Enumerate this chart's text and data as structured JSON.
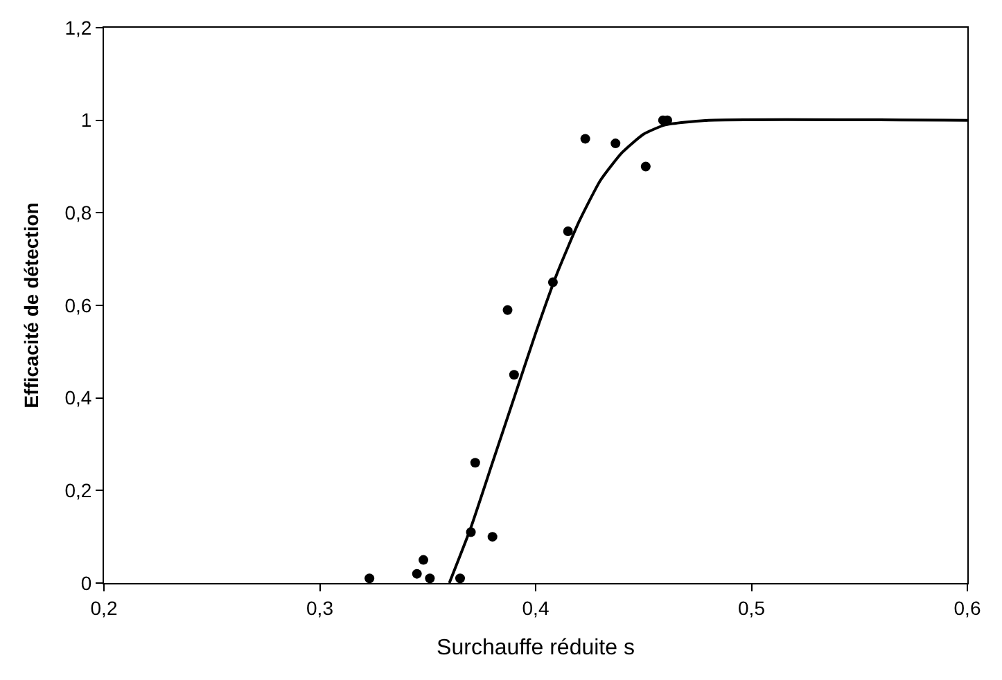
{
  "chart_data": {
    "type": "scatter",
    "xlabel": "Surchauffe réduite s",
    "ylabel": "Efficacité de détection",
    "xlim": [
      0.2,
      0.6
    ],
    "ylim": [
      0,
      1.2
    ],
    "xticks": [
      {
        "value": 0.2,
        "label": "0,2"
      },
      {
        "value": 0.3,
        "label": "0,3"
      },
      {
        "value": 0.4,
        "label": "0,4"
      },
      {
        "value": 0.5,
        "label": "0,5"
      },
      {
        "value": 0.6,
        "label": "0,6"
      }
    ],
    "yticks": [
      0,
      {
        "value": 0.2,
        "label": "0,2"
      },
      {
        "value": 0.4,
        "label": "0,4"
      },
      {
        "value": 0.6,
        "label": "0,6"
      },
      {
        "value": 0.8,
        "label": "0,8"
      },
      1,
      {
        "value": 1.2,
        "label": "1,2"
      }
    ],
    "marker": "circle",
    "series": [
      {
        "color": "#000000",
        "x": [
          0.323,
          0.345,
          0.348,
          0.351,
          0.365,
          0.37,
          0.372,
          0.38,
          0.387,
          0.39,
          0.408,
          0.415,
          0.423,
          0.437,
          0.451,
          0.459,
          0.461
        ],
        "values": [
          0.01,
          0.02,
          0.05,
          0.01,
          0.01,
          0.11,
          0.26,
          0.1,
          0.59,
          0.45,
          0.65,
          0.76,
          0.96,
          0.95,
          0.9,
          1.0,
          1.0
        ]
      },
      {
        "type": "line",
        "color": "#000000",
        "marker": "none",
        "line_style": "solid",
        "x": [
          0.36,
          0.37,
          0.38,
          0.39,
          0.4,
          0.41,
          0.42,
          0.43,
          0.44,
          0.45,
          0.46,
          0.48,
          0.6
        ],
        "values": [
          0,
          0.12,
          0.26,
          0.4,
          0.54,
          0.67,
          0.78,
          0.87,
          0.93,
          0.97,
          0.99,
          1.0,
          1.0
        ]
      }
    ]
  }
}
